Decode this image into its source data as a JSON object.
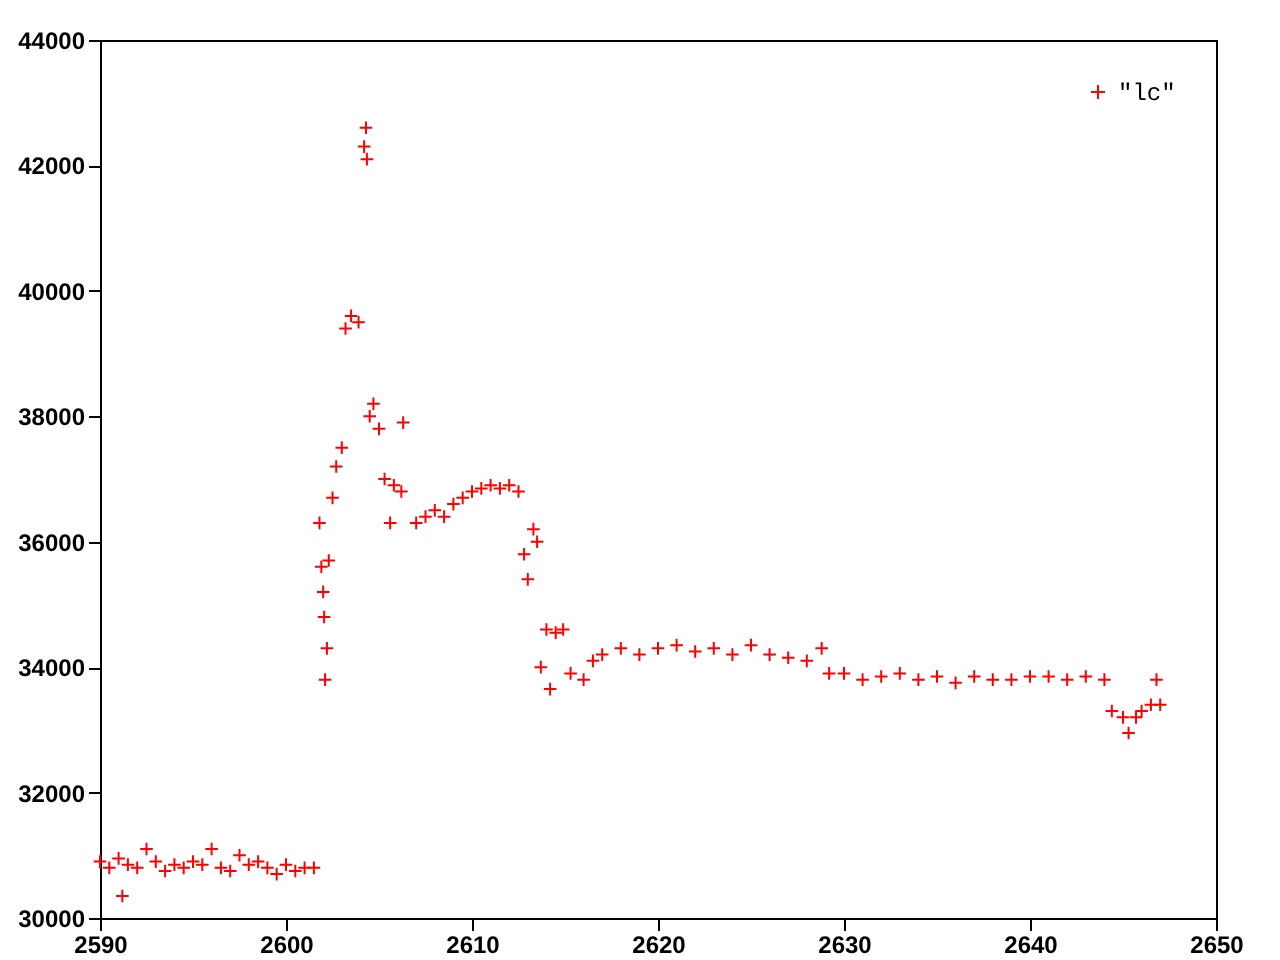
{
  "chart_data": {
    "type": "scatter",
    "marker": "cross",
    "grid": false,
    "legend": "top right",
    "xlim": [
      2590,
      2650
    ],
    "xticks": [
      2590,
      2600,
      2610,
      2620,
      2630,
      2640,
      2650
    ],
    "ylim": [
      30000,
      44000
    ],
    "yticks": [
      30000,
      32000,
      34000,
      36000,
      38000,
      40000,
      42000,
      44000
    ],
    "series": [
      {
        "name": "\"lc\"",
        "color": "#ff0000",
        "x": [
          2590.0,
          2590.5,
          2591.0,
          2591.2,
          2591.5,
          2592.0,
          2592.5,
          2593.0,
          2593.5,
          2594.0,
          2594.5,
          2595.0,
          2595.5,
          2596.0,
          2596.5,
          2597.0,
          2597.5,
          2598.0,
          2598.5,
          2599.0,
          2599.5,
          2600.0,
          2600.5,
          2601.0,
          2601.5,
          2601.8,
          2601.9,
          2602.0,
          2602.05,
          2602.1,
          2602.2,
          2602.3,
          2602.5,
          2602.7,
          2603.0,
          2603.2,
          2603.5,
          2603.9,
          2604.2,
          2604.3,
          2604.35,
          2604.5,
          2604.7,
          2605.0,
          2605.3,
          2605.6,
          2605.8,
          2606.3,
          2606.2,
          2607.0,
          2607.5,
          2608.0,
          2608.5,
          2609.0,
          2609.5,
          2610.0,
          2610.5,
          2611.0,
          2611.5,
          2612.0,
          2612.5,
          2612.8,
          2613.0,
          2613.3,
          2613.5,
          2613.7,
          2614.0,
          2614.5,
          2614.9,
          2614.2,
          2615.3,
          2616.0,
          2616.5,
          2617.0,
          2618.0,
          2619.0,
          2620.0,
          2621.0,
          2622.0,
          2623.0,
          2624.0,
          2625.0,
          2626.0,
          2627.0,
          2628.0,
          2628.8,
          2629.2,
          2630.0,
          2631.0,
          2632.0,
          2633.0,
          2634.0,
          2635.0,
          2636.0,
          2637.0,
          2638.0,
          2639.0,
          2640.0,
          2641.0,
          2642.0,
          2643.0,
          2644.0,
          2644.4,
          2645.0,
          2645.3,
          2645.7,
          2646.0,
          2646.5,
          2646.8,
          2647.0
        ],
        "values": [
          30900,
          30800,
          30950,
          30350,
          30850,
          30800,
          31100,
          30900,
          30750,
          30850,
          30800,
          30900,
          30850,
          31100,
          30800,
          30750,
          31000,
          30850,
          30900,
          30800,
          30700,
          30850,
          30750,
          30800,
          30800,
          36300,
          35600,
          35200,
          34800,
          33800,
          34300,
          35700,
          36700,
          37200,
          37500,
          39400,
          39600,
          39500,
          42300,
          42600,
          42100,
          38000,
          38200,
          37800,
          37000,
          36300,
          36900,
          37900,
          36800,
          36300,
          36400,
          36500,
          36400,
          36600,
          36700,
          36800,
          36850,
          36900,
          36850,
          36900,
          36800,
          35800,
          35400,
          36200,
          36000,
          34000,
          34600,
          34550,
          34600,
          33650,
          33900,
          33800,
          34100,
          34200,
          34300,
          34200,
          34300,
          34350,
          34250,
          34300,
          34200,
          34350,
          34200,
          34150,
          34100,
          34300,
          33900,
          33900,
          33800,
          33850,
          33900,
          33800,
          33850,
          33750,
          33850,
          33800,
          33800,
          33850,
          33850,
          33800,
          33850,
          33800,
          33300,
          33200,
          32950,
          33200,
          33300,
          33400,
          33800,
          33400
        ]
      }
    ]
  }
}
